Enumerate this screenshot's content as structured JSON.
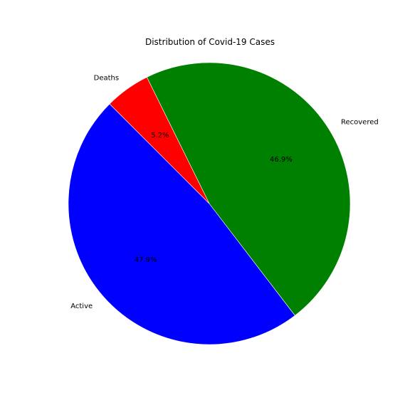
{
  "chart_data": {
    "type": "pie",
    "title": "Distribution of Covid-19 Cases",
    "slices": [
      {
        "label": "Active",
        "value": 47.9,
        "pct_label": "47.9%",
        "color": "#0000ff"
      },
      {
        "label": "Recovered",
        "value": 46.9,
        "pct_label": "46.9%",
        "color": "#008000"
      },
      {
        "label": "Deaths",
        "value": 5.2,
        "pct_label": "5.2%",
        "color": "#ff0000"
      }
    ],
    "start_angle_deg": 135,
    "direction": "counterclockwise",
    "legend": "none"
  }
}
